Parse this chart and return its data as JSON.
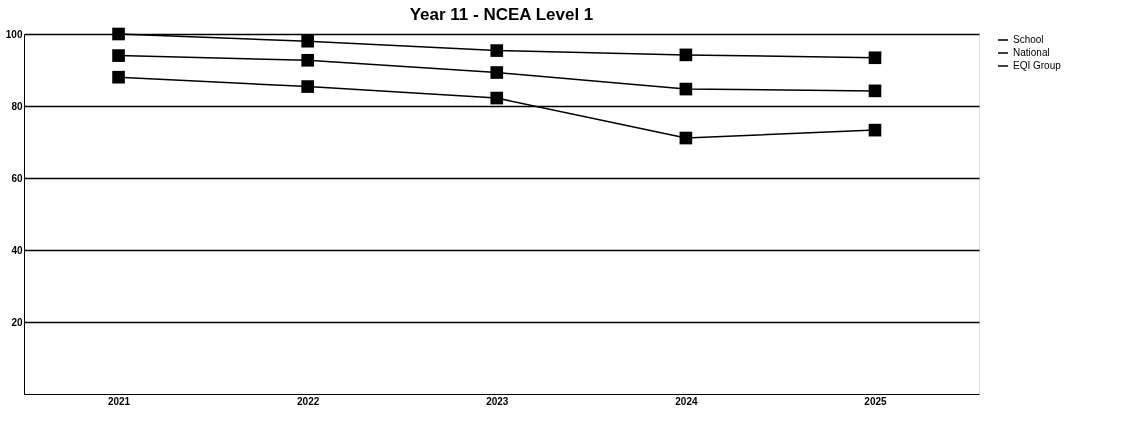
{
  "chart_data": {
    "type": "line",
    "title": "Year 11 - NCEA Level 1",
    "categories": [
      "2021",
      "2022",
      "2023",
      "2024",
      "2025"
    ],
    "series": [
      {
        "name": "School",
        "color": "#000000",
        "values": [
          100,
          98,
          95.4,
          94.2,
          93.4
        ]
      },
      {
        "name": "National",
        "color": "#000000",
        "values": [
          94,
          92.7,
          89.3,
          84.7,
          84.2
        ]
      },
      {
        "name": "EQI Group",
        "color": "#000000",
        "values": [
          88,
          85.4,
          82.2,
          71.1,
          73.3
        ]
      }
    ],
    "ylim": [
      0,
      100
    ],
    "yticks": [
      20,
      40,
      60,
      80,
      100
    ],
    "grid": "y",
    "legend": "right",
    "marker": "square",
    "line_style": "solid"
  }
}
